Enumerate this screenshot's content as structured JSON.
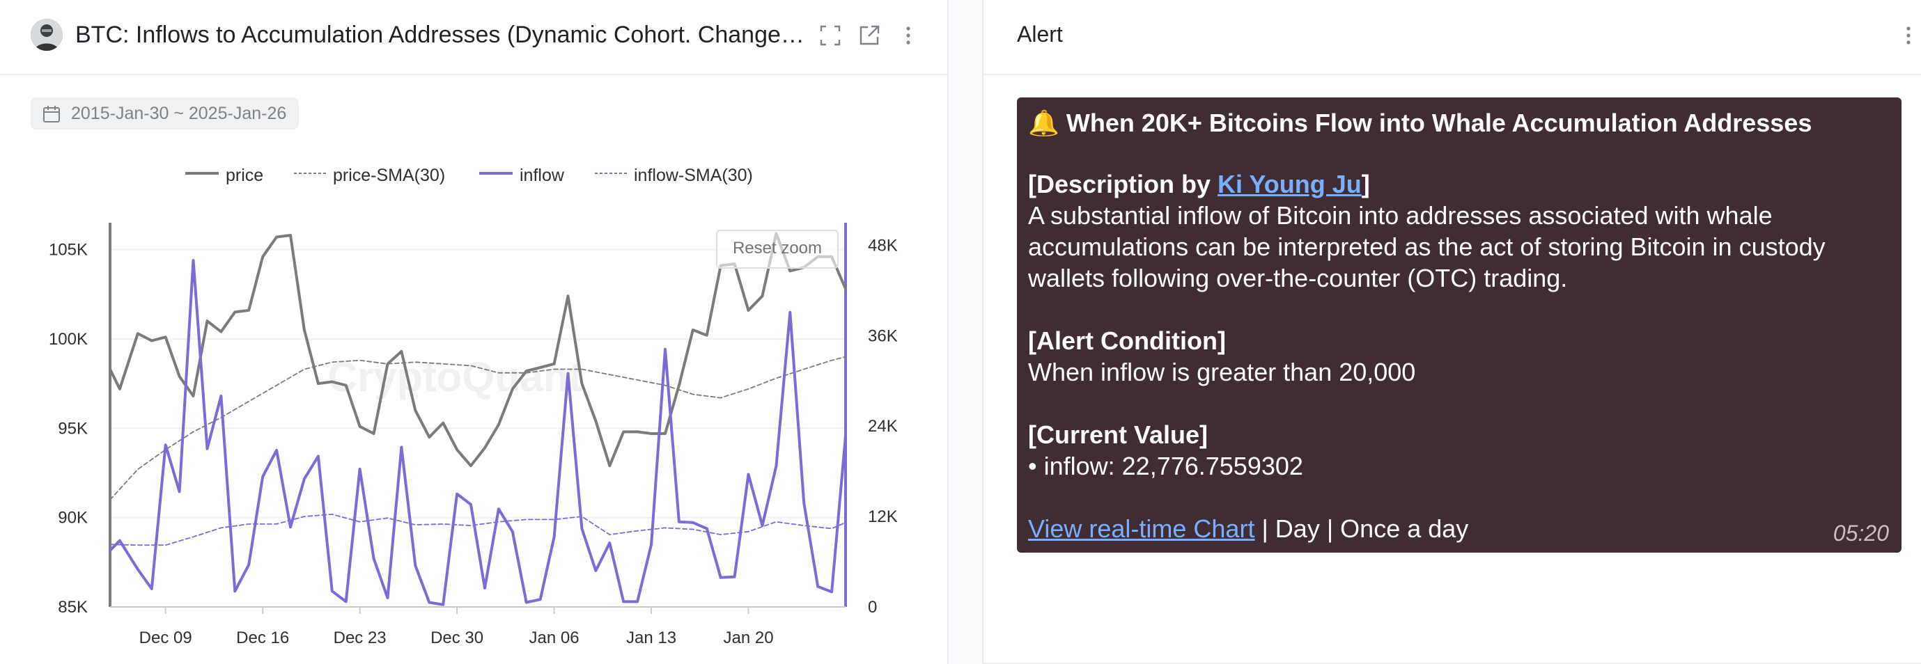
{
  "left_panel": {
    "title": "BTC: Inflows to Accumulation Addresses (Dynamic Cohort. Changes ...",
    "date_range": "2015-Jan-30 ~ 2025-Jan-26",
    "reset_zoom_label": "Reset zoom",
    "watermark": "CryptoQuant",
    "icons": [
      "fullscreen-icon",
      "external-link-icon",
      "more-vertical-icon",
      "calendar-icon"
    ]
  },
  "chart_data": {
    "type": "line",
    "legend": [
      {
        "name": "price",
        "style": "solid",
        "color": "#7b7b7b"
      },
      {
        "name": "price-SMA(30)",
        "style": "dashed",
        "color": "#7b7b7b"
      },
      {
        "name": "inflow",
        "style": "solid",
        "color": "#7b6bd8"
      },
      {
        "name": "inflow-SMA(30)",
        "style": "dashed",
        "color": "#7b6bd8"
      }
    ],
    "x_tick_labels": [
      "Dec 09",
      "Dec 16",
      "Dec 23",
      "Dec 30",
      "Jan 06",
      "Jan 13",
      "Jan 20"
    ],
    "x_tick_days": [
      8,
      15,
      22,
      29,
      36,
      43,
      50
    ],
    "x_range_days": [
      4,
      57
    ],
    "y_left": {
      "ticks": [
        "85K",
        "90K",
        "95K",
        "100K",
        "105K"
      ],
      "tick_values": [
        85000,
        90000,
        95000,
        100000,
        105000
      ],
      "range": [
        85000,
        106500
      ]
    },
    "y_right": {
      "ticks": [
        "0",
        "12K",
        "24K",
        "36K",
        "48K"
      ],
      "tick_values": [
        0,
        12000,
        24000,
        36000,
        48000
      ],
      "range": [
        0,
        51000
      ]
    },
    "series": [
      {
        "name": "price",
        "axis": "left",
        "x": [
          4,
          4.7,
          6,
          7,
          8,
          9,
          10,
          11,
          12,
          13,
          14,
          15,
          16,
          17,
          18,
          19,
          20,
          21,
          22,
          23,
          24,
          25,
          26,
          27,
          28,
          29,
          30,
          31,
          32,
          33,
          34,
          35,
          36,
          37,
          38,
          39,
          40,
          41,
          42,
          43,
          44,
          45,
          46,
          47,
          48,
          49,
          50,
          51,
          52,
          53,
          54,
          55,
          56,
          57
        ],
        "values": [
          98300,
          97200,
          100300,
          99900,
          100100,
          97900,
          96800,
          101000,
          100400,
          101500,
          101600,
          104600,
          105700,
          105800,
          100500,
          97500,
          97600,
          97400,
          95100,
          94700,
          98600,
          99300,
          96000,
          94500,
          95300,
          93800,
          92900,
          93900,
          95200,
          97200,
          98200,
          98400,
          98600,
          102400,
          97500,
          95400,
          92900,
          94800,
          94800,
          94700,
          94700,
          97400,
          100500,
          100200,
          104100,
          104200,
          101600,
          102400,
          105900,
          103800,
          104000,
          104600,
          104600,
          102800
        ]
      },
      {
        "name": "price-SMA(30)",
        "axis": "left",
        "x": [
          4,
          6,
          8,
          10,
          12,
          14,
          16,
          18,
          20,
          22,
          24,
          26,
          28,
          30,
          32,
          34,
          36,
          38,
          40,
          42,
          44,
          46,
          48,
          50,
          52,
          54,
          56,
          57
        ],
        "values": [
          91000,
          92700,
          93800,
          94800,
          95600,
          96500,
          97400,
          98300,
          98700,
          98800,
          98600,
          98700,
          98600,
          98500,
          98100,
          98100,
          98300,
          98300,
          98000,
          97700,
          97400,
          96900,
          96700,
          97200,
          97800,
          98300,
          98800,
          99000
        ]
      },
      {
        "name": "inflow",
        "axis": "right",
        "x": [
          4,
          4.7,
          6,
          7,
          8,
          9,
          10,
          11,
          12,
          13,
          14,
          15,
          16,
          17,
          18,
          19,
          20,
          21,
          22,
          23,
          24,
          25,
          26,
          27,
          28,
          29,
          30,
          31,
          32,
          33,
          34,
          35,
          36,
          37,
          38,
          39,
          40,
          41,
          42,
          43,
          44,
          45,
          46,
          47,
          48,
          49,
          50,
          51,
          52,
          53,
          54,
          55,
          56,
          57
        ],
        "values": [
          7500,
          8800,
          5000,
          2400,
          21500,
          15300,
          46000,
          21000,
          28000,
          2100,
          5600,
          17300,
          20800,
          10600,
          17000,
          20000,
          2100,
          700,
          18300,
          6400,
          1200,
          21200,
          5500,
          600,
          300,
          15000,
          13600,
          2500,
          13000,
          10000,
          600,
          1000,
          9300,
          31000,
          10400,
          4800,
          8500,
          700,
          700,
          8300,
          34200,
          11300,
          11200,
          10400,
          3900,
          4000,
          17600,
          10800,
          18700,
          39100,
          13800,
          2700,
          2000,
          22700
        ]
      },
      {
        "name": "inflow-SMA(30)",
        "axis": "right",
        "x": [
          4,
          6,
          8,
          10,
          12,
          14,
          16,
          18,
          20,
          22,
          24,
          26,
          28,
          30,
          32,
          34,
          36,
          38,
          40,
          42,
          44,
          46,
          48,
          50,
          52,
          54,
          56,
          57
        ],
        "values": [
          8300,
          8200,
          8200,
          9300,
          10500,
          11000,
          11000,
          12000,
          12300,
          11300,
          11800,
          10900,
          11000,
          10800,
          11300,
          11600,
          11600,
          12000,
          9600,
          10100,
          10500,
          10300,
          9600,
          10000,
          11300,
          10800,
          10400,
          11200
        ]
      }
    ]
  },
  "right_panel": {
    "title": "Alert",
    "alert": {
      "bell": "🔔",
      "heading": "When 20K+ Bitcoins Flow into Whale Accumulation Addresses",
      "desc_prefix": "[Description by ",
      "desc_author": "Ki Young Ju",
      "desc_suffix": "]",
      "desc_lines": [
        "A substantial inflow of Bitcoin into addresses associated with whale",
        "accumulations can be interpreted as the act of storing Bitcoin in custody",
        "wallets following over-the-counter (OTC) trading."
      ],
      "condition_heading": "[Alert Condition]",
      "condition_text": "When inflow is greater than 20,000",
      "current_heading": "[Current Value]",
      "current_text": " • inflow: 22,776.7559302",
      "link_text": "View real-time Chart",
      "footer_suffix": " | Day | Once a day",
      "time": "05:20"
    }
  }
}
